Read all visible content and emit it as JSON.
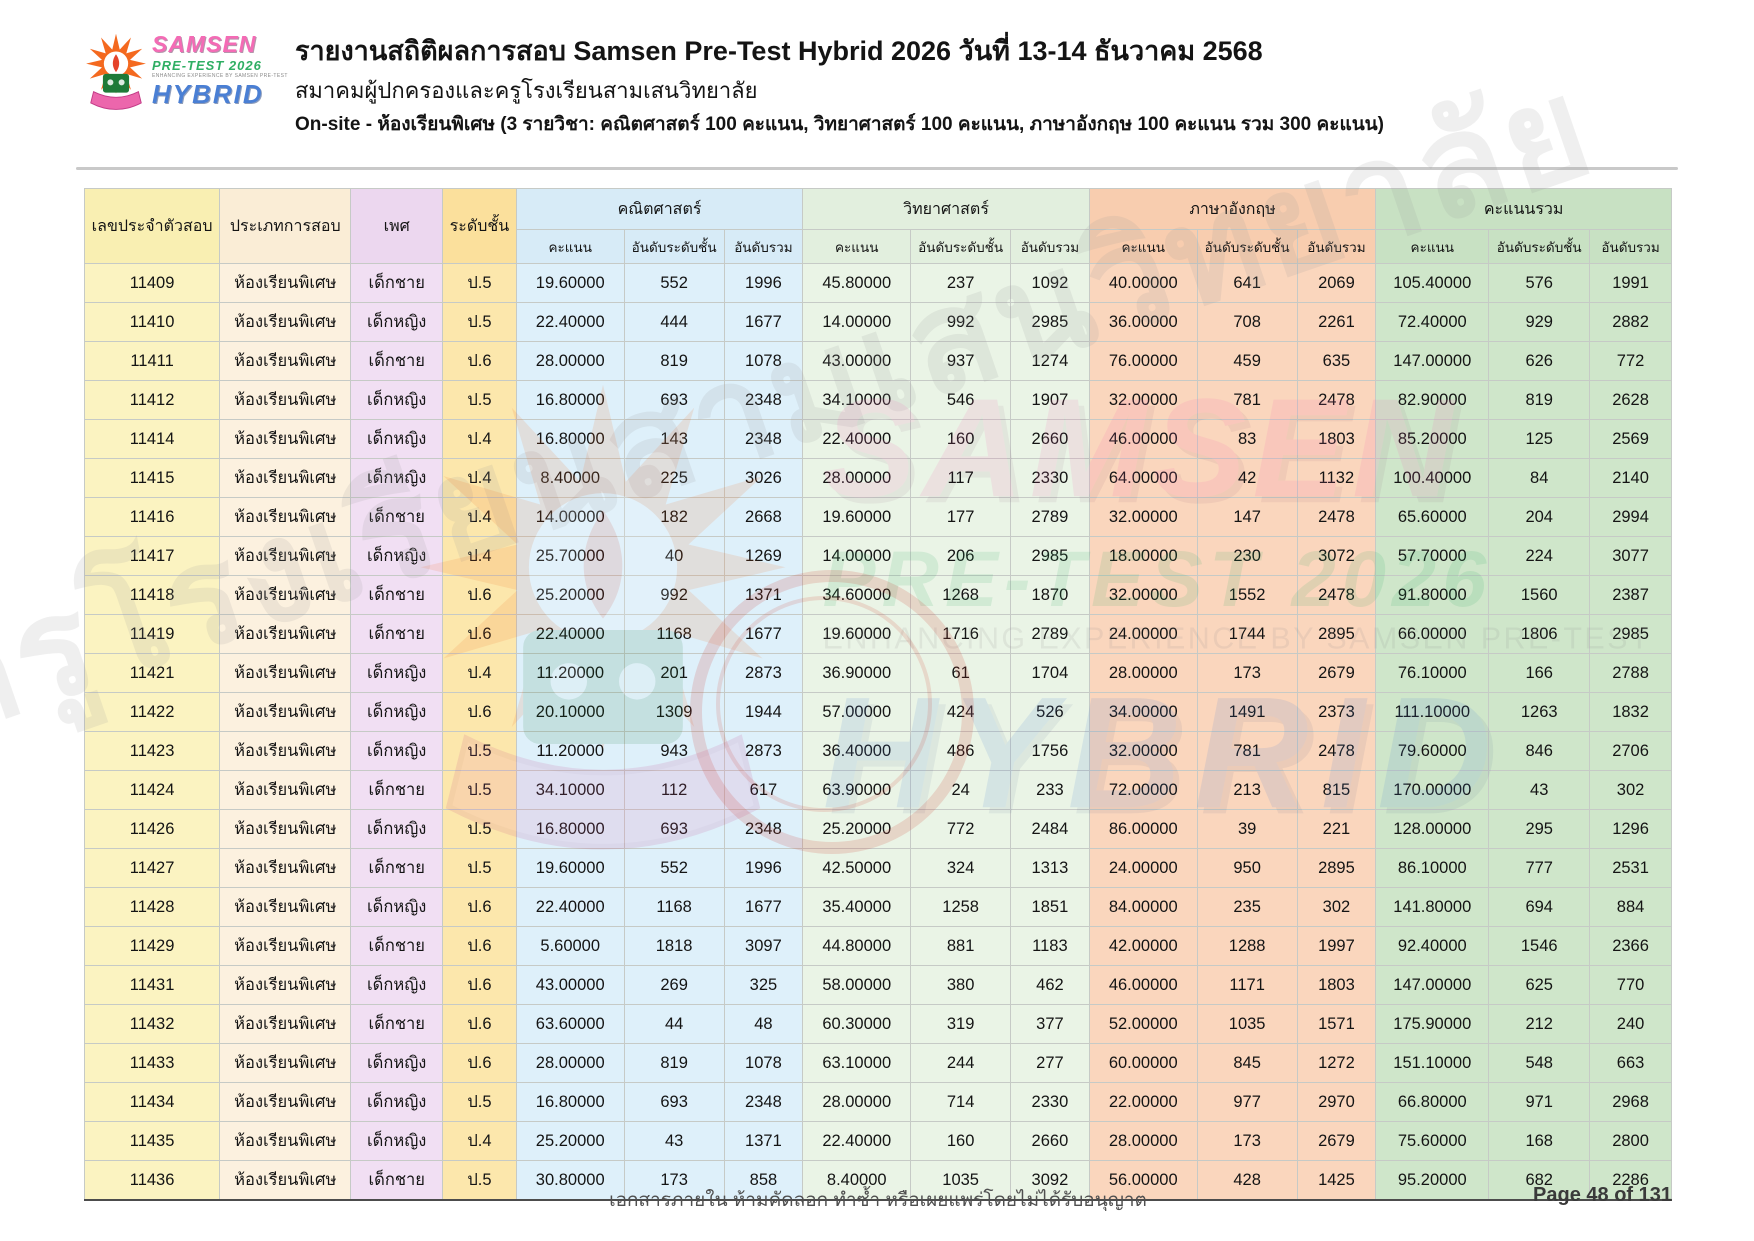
{
  "header": {
    "logo": {
      "samsen": "SAMSEN",
      "pretest": "PRE-TEST 2026",
      "tagline": "ENHANCING EXPERIENCE BY SAMSEN PRE-TEST",
      "hybrid": "HYBRID"
    },
    "title": "รายงานสถิติผลการสอบ Samsen Pre-Test Hybrid 2026 วันที่ 13-14 ธันวาคม 2568",
    "subtitle": "สมาคมผู้ปกครองและครูโรงเรียนสามเสนวิทยาลัย",
    "session": "On-site - ห้องเรียนพิเศษ (3 รายวิชา: คณิตศาสตร์ 100 คะแนน, วิทยาศาสตร์ 100 คะแนน, ภาษาอังกฤษ 100 คะแนน รวม 300 คะแนน)"
  },
  "table": {
    "base_columns": [
      "เลขประจำตัวสอบ",
      "ประเภทการสอบ",
      "เพศ",
      "ระดับชั้น"
    ],
    "groups": [
      "คณิตศาสตร์",
      "วิทยาศาสตร์",
      "ภาษาอังกฤษ",
      "คะแนนรวม"
    ],
    "sub_columns": [
      "คะแนน",
      "อันดับระดับชั้น",
      "อันดับรวม"
    ],
    "rows": [
      [
        "11409",
        "ห้องเรียนพิเศษ",
        "เด็กชาย",
        "ป.5",
        "19.60000",
        "552",
        "1996",
        "45.80000",
        "237",
        "1092",
        "40.00000",
        "641",
        "2069",
        "105.40000",
        "576",
        "1991"
      ],
      [
        "11410",
        "ห้องเรียนพิเศษ",
        "เด็กหญิง",
        "ป.5",
        "22.40000",
        "444",
        "1677",
        "14.00000",
        "992",
        "2985",
        "36.00000",
        "708",
        "2261",
        "72.40000",
        "929",
        "2882"
      ],
      [
        "11411",
        "ห้องเรียนพิเศษ",
        "เด็กชาย",
        "ป.6",
        "28.00000",
        "819",
        "1078",
        "43.00000",
        "937",
        "1274",
        "76.00000",
        "459",
        "635",
        "147.00000",
        "626",
        "772"
      ],
      [
        "11412",
        "ห้องเรียนพิเศษ",
        "เด็กหญิง",
        "ป.5",
        "16.80000",
        "693",
        "2348",
        "34.10000",
        "546",
        "1907",
        "32.00000",
        "781",
        "2478",
        "82.90000",
        "819",
        "2628"
      ],
      [
        "11414",
        "ห้องเรียนพิเศษ",
        "เด็กหญิง",
        "ป.4",
        "16.80000",
        "143",
        "2348",
        "22.40000",
        "160",
        "2660",
        "46.00000",
        "83",
        "1803",
        "85.20000",
        "125",
        "2569"
      ],
      [
        "11415",
        "ห้องเรียนพิเศษ",
        "เด็กหญิง",
        "ป.4",
        "8.40000",
        "225",
        "3026",
        "28.00000",
        "117",
        "2330",
        "64.00000",
        "42",
        "1132",
        "100.40000",
        "84",
        "2140"
      ],
      [
        "11416",
        "ห้องเรียนพิเศษ",
        "เด็กชาย",
        "ป.4",
        "14.00000",
        "182",
        "2668",
        "19.60000",
        "177",
        "2789",
        "32.00000",
        "147",
        "2478",
        "65.60000",
        "204",
        "2994"
      ],
      [
        "11417",
        "ห้องเรียนพิเศษ",
        "เด็กหญิง",
        "ป.4",
        "25.70000",
        "40",
        "1269",
        "14.00000",
        "206",
        "2985",
        "18.00000",
        "230",
        "3072",
        "57.70000",
        "224",
        "3077"
      ],
      [
        "11418",
        "ห้องเรียนพิเศษ",
        "เด็กชาย",
        "ป.6",
        "25.20000",
        "992",
        "1371",
        "34.60000",
        "1268",
        "1870",
        "32.00000",
        "1552",
        "2478",
        "91.80000",
        "1560",
        "2387"
      ],
      [
        "11419",
        "ห้องเรียนพิเศษ",
        "เด็กชาย",
        "ป.6",
        "22.40000",
        "1168",
        "1677",
        "19.60000",
        "1716",
        "2789",
        "24.00000",
        "1744",
        "2895",
        "66.00000",
        "1806",
        "2985"
      ],
      [
        "11421",
        "ห้องเรียนพิเศษ",
        "เด็กหญิง",
        "ป.4",
        "11.20000",
        "201",
        "2873",
        "36.90000",
        "61",
        "1704",
        "28.00000",
        "173",
        "2679",
        "76.10000",
        "166",
        "2788"
      ],
      [
        "11422",
        "ห้องเรียนพิเศษ",
        "เด็กหญิง",
        "ป.6",
        "20.10000",
        "1309",
        "1944",
        "57.00000",
        "424",
        "526",
        "34.00000",
        "1491",
        "2373",
        "111.10000",
        "1263",
        "1832"
      ],
      [
        "11423",
        "ห้องเรียนพิเศษ",
        "เด็กหญิง",
        "ป.5",
        "11.20000",
        "943",
        "2873",
        "36.40000",
        "486",
        "1756",
        "32.00000",
        "781",
        "2478",
        "79.60000",
        "846",
        "2706"
      ],
      [
        "11424",
        "ห้องเรียนพิเศษ",
        "เด็กชาย",
        "ป.5",
        "34.10000",
        "112",
        "617",
        "63.90000",
        "24",
        "233",
        "72.00000",
        "213",
        "815",
        "170.00000",
        "43",
        "302"
      ],
      [
        "11426",
        "ห้องเรียนพิเศษ",
        "เด็กหญิง",
        "ป.5",
        "16.80000",
        "693",
        "2348",
        "25.20000",
        "772",
        "2484",
        "86.00000",
        "39",
        "221",
        "128.00000",
        "295",
        "1296"
      ],
      [
        "11427",
        "ห้องเรียนพิเศษ",
        "เด็กชาย",
        "ป.5",
        "19.60000",
        "552",
        "1996",
        "42.50000",
        "324",
        "1313",
        "24.00000",
        "950",
        "2895",
        "86.10000",
        "777",
        "2531"
      ],
      [
        "11428",
        "ห้องเรียนพิเศษ",
        "เด็กหญิง",
        "ป.6",
        "22.40000",
        "1168",
        "1677",
        "35.40000",
        "1258",
        "1851",
        "84.00000",
        "235",
        "302",
        "141.80000",
        "694",
        "884"
      ],
      [
        "11429",
        "ห้องเรียนพิเศษ",
        "เด็กชาย",
        "ป.6",
        "5.60000",
        "1818",
        "3097",
        "44.80000",
        "881",
        "1183",
        "42.00000",
        "1288",
        "1997",
        "92.40000",
        "1546",
        "2366"
      ],
      [
        "11431",
        "ห้องเรียนพิเศษ",
        "เด็กหญิง",
        "ป.6",
        "43.00000",
        "269",
        "325",
        "58.00000",
        "380",
        "462",
        "46.00000",
        "1171",
        "1803",
        "147.00000",
        "625",
        "770"
      ],
      [
        "11432",
        "ห้องเรียนพิเศษ",
        "เด็กชาย",
        "ป.6",
        "63.60000",
        "44",
        "48",
        "60.30000",
        "319",
        "377",
        "52.00000",
        "1035",
        "1571",
        "175.90000",
        "212",
        "240"
      ],
      [
        "11433",
        "ห้องเรียนพิเศษ",
        "เด็กหญิง",
        "ป.6",
        "28.00000",
        "819",
        "1078",
        "63.10000",
        "244",
        "277",
        "60.00000",
        "845",
        "1272",
        "151.10000",
        "548",
        "663"
      ],
      [
        "11434",
        "ห้องเรียนพิเศษ",
        "เด็กหญิง",
        "ป.5",
        "16.80000",
        "693",
        "2348",
        "28.00000",
        "714",
        "2330",
        "22.00000",
        "977",
        "2970",
        "66.80000",
        "971",
        "2968"
      ],
      [
        "11435",
        "ห้องเรียนพิเศษ",
        "เด็กหญิง",
        "ป.4",
        "25.20000",
        "43",
        "1371",
        "22.40000",
        "160",
        "2660",
        "28.00000",
        "173",
        "2679",
        "75.60000",
        "168",
        "2800"
      ],
      [
        "11436",
        "ห้องเรียนพิเศษ",
        "เด็กชาย",
        "ป.5",
        "30.80000",
        "173",
        "858",
        "8.40000",
        "1035",
        "3092",
        "56.00000",
        "428",
        "1425",
        "95.20000",
        "682",
        "2286"
      ]
    ]
  },
  "watermark": {
    "diagonal_text": "สมาคมผู้ปกครองและครูโรงเรียนสามเสนวิทยาลัย"
  },
  "footer": {
    "notice": "เอกสารภายใน ห้ามคัดลอก ทำซ้ำ หรือเผยแพร่โดยไม่ได้รับอนุญาต",
    "page": "Page 48 of 131"
  },
  "colors": {
    "id": "#FBF3C1",
    "id_h": "#F9EFB2",
    "type": "#FCF1DF",
    "type_h": "#FAEDD6",
    "sex": "#F1DFF3",
    "sex_h": "#ECD7EF",
    "grade": "#FCE7AC",
    "grade_h": "#FBE09C",
    "math": "#DEF0FA",
    "math_h": "#D7EBF7",
    "sci": "#EAF4E6",
    "sci_h": "#E2EFDE",
    "eng": "#FAD6BD",
    "eng_h": "#F8CDAF",
    "tot": "#CFE6CA",
    "tot_h": "#C8E1C3",
    "border": "#C6CAC6",
    "accent_pink": "#F46BB5",
    "accent_green": "#2FAE63",
    "accent_blue": "#4A7FD4"
  }
}
